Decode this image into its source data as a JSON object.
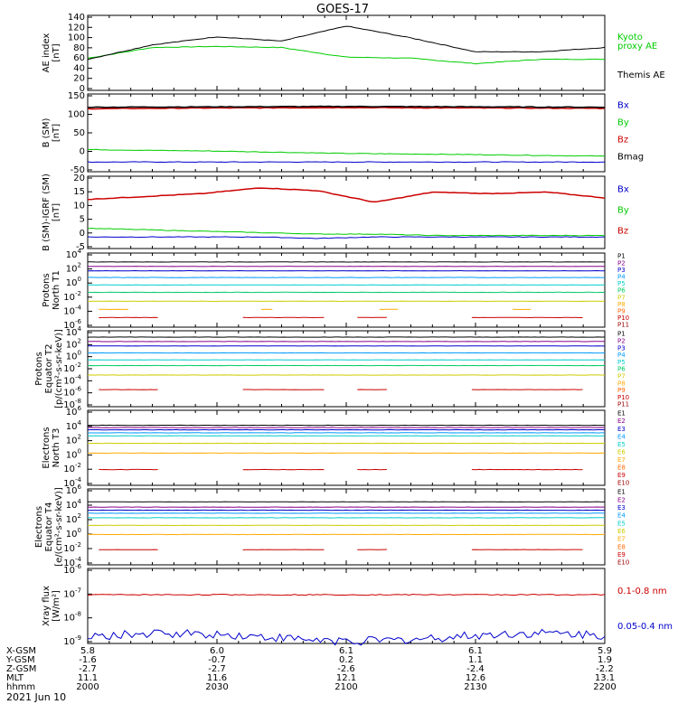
{
  "title": "GOES-17",
  "date_label": "2021 Jun 10",
  "panels": [
    {
      "id": "ae",
      "ylabel": [
        "AE index",
        "[nT]"
      ],
      "ticks": [
        "140",
        "120",
        "100",
        "80",
        "60",
        "40",
        "20",
        "0"
      ],
      "legend": [
        {
          "text": "Kyoto",
          "color": "#00cc00"
        },
        {
          "text": "proxy AE",
          "color": "#00cc00"
        },
        {
          "text": "Themis AE",
          "color": "#000000"
        }
      ]
    },
    {
      "id": "bsm",
      "ylabel": [
        "B (SM)",
        "[nT]"
      ],
      "ticks": [
        "150",
        "100",
        "50",
        "0",
        "-50"
      ],
      "legend": [
        {
          "text": "Bx",
          "color": "#0000cc"
        },
        {
          "text": "By",
          "color": "#00cc00"
        },
        {
          "text": "Bz",
          "color": "#cc0000"
        },
        {
          "text": "Bmag",
          "color": "#000000"
        }
      ]
    },
    {
      "id": "bigrf",
      "ylabel": [
        "B (SM)-IGRF (SM)",
        "[nT]"
      ],
      "ticks": [
        "20",
        "15",
        "10",
        "5",
        "0",
        "-5"
      ],
      "legend": [
        {
          "text": "Bx",
          "color": "#0000cc"
        },
        {
          "text": "By",
          "color": "#00cc00"
        },
        {
          "text": "Bz",
          "color": "#cc0000"
        }
      ]
    },
    {
      "id": "pt1",
      "ylabel": [
        "Protons",
        "North T1"
      ],
      "ticks": [
        "10^4",
        "10^2",
        "10^0",
        "10^-2",
        "10^-4",
        "10^-6"
      ],
      "legend": [
        {
          "text": "P1",
          "color": "#000000"
        },
        {
          "text": "P2",
          "color": "#880088"
        },
        {
          "text": "P3",
          "color": "#0000cc"
        },
        {
          "text": "P4",
          "color": "#0099ff"
        },
        {
          "text": "P5",
          "color": "#00cccc"
        },
        {
          "text": "P6",
          "color": "#00cc66"
        },
        {
          "text": "P7",
          "color": "#cccc00"
        },
        {
          "text": "P8",
          "color": "#ffaa00"
        },
        {
          "text": "P9",
          "color": "#ff6600"
        },
        {
          "text": "P10",
          "color": "#cc0000"
        },
        {
          "text": "P11",
          "color": "#990000"
        }
      ]
    },
    {
      "id": "pt2",
      "ylabel": [
        "Protons",
        "Equator T2",
        "[p/(cm²-s-sr-keV)]"
      ],
      "ticks": [
        "10^4",
        "10^2",
        "10^0",
        "10^-2",
        "10^-4",
        "10^-6",
        "10^-8"
      ],
      "legend": [
        {
          "text": "P1",
          "color": "#000000"
        },
        {
          "text": "P2",
          "color": "#880088"
        },
        {
          "text": "P3",
          "color": "#0000cc"
        },
        {
          "text": "P4",
          "color": "#0099ff"
        },
        {
          "text": "P5",
          "color": "#00cccc"
        },
        {
          "text": "P6",
          "color": "#00cc66"
        },
        {
          "text": "P7",
          "color": "#cccc00"
        },
        {
          "text": "P8",
          "color": "#ffaa00"
        },
        {
          "text": "P9",
          "color": "#ff6600"
        },
        {
          "text": "P10",
          "color": "#cc0000"
        },
        {
          "text": "P11",
          "color": "#990000"
        }
      ]
    },
    {
      "id": "et3",
      "ylabel": [
        "Electrons",
        "North T3"
      ],
      "ticks": [
        "10^6",
        "10^4",
        "10^2",
        "10^0",
        "10^-2",
        "10^-4"
      ],
      "legend": [
        {
          "text": "E1",
          "color": "#000000"
        },
        {
          "text": "E2",
          "color": "#880088"
        },
        {
          "text": "E3",
          "color": "#0000cc"
        },
        {
          "text": "E4",
          "color": "#0099ff"
        },
        {
          "text": "E5",
          "color": "#00cccc"
        },
        {
          "text": "E6",
          "color": "#cccc00"
        },
        {
          "text": "E7",
          "color": "#ffaa00"
        },
        {
          "text": "E8",
          "color": "#ff6600"
        },
        {
          "text": "E9",
          "color": "#cc0000"
        },
        {
          "text": "E10",
          "color": "#990000"
        }
      ]
    },
    {
      "id": "et4",
      "ylabel": [
        "Electrons",
        "Equator T4",
        "[e/(cm²-s-sr-keV)]"
      ],
      "ticks": [
        "10^6",
        "10^4",
        "10^2",
        "10^0",
        "10^-2",
        "10^-4"
      ],
      "legend": [
        {
          "text": "E1",
          "color": "#000000"
        },
        {
          "text": "E2",
          "color": "#880088"
        },
        {
          "text": "E3",
          "color": "#0000cc"
        },
        {
          "text": "E4",
          "color": "#0099ff"
        },
        {
          "text": "E5",
          "color": "#00cccc"
        },
        {
          "text": "E6",
          "color": "#cccc00"
        },
        {
          "text": "E7",
          "color": "#ffaa00"
        },
        {
          "text": "E8",
          "color": "#ff6600"
        },
        {
          "text": "E9",
          "color": "#cc0000"
        },
        {
          "text": "E10",
          "color": "#990000"
        }
      ]
    },
    {
      "id": "xray",
      "ylabel": [
        "Xray flux",
        "[W/m²]"
      ],
      "ticks": [
        "10^-6",
        "10^-7",
        "10^-8",
        "10^-9"
      ],
      "legend": [
        {
          "text": "0.1-0.8 nm",
          "color": "#cc0000"
        },
        {
          "text": "0.05-0.4 nm",
          "color": "#0000cc"
        }
      ]
    }
  ],
  "ephemeris": {
    "labels": [
      "X-GSM",
      "Y-GSM",
      "Z-GSM",
      "MLT",
      "hhmm"
    ],
    "columns": [
      [
        "5.8",
        "-1.6",
        "-2.7",
        "11.1",
        "2000"
      ],
      [
        "6.0",
        "-0.7",
        "-2.7",
        "11.6",
        "2030"
      ],
      [
        "6.1",
        "0.2",
        "-2.6",
        "12.1",
        "2100"
      ],
      [
        "6.1",
        "1.1",
        "-2.4",
        "12.6",
        "2130"
      ],
      [
        "5.9",
        "1.9",
        "-2.2",
        "13.1",
        "2200"
      ]
    ]
  },
  "chart_data": [
    {
      "type": "line",
      "x": [
        "2000",
        "2015",
        "2030",
        "2045",
        "2100",
        "2115",
        "2130",
        "2145",
        "2200"
      ],
      "ylim": [
        0,
        140
      ],
      "series": [
        {
          "name": "Kyoto proxy AE",
          "color": "#00cc00",
          "values": [
            60,
            80,
            82,
            80,
            62,
            60,
            50,
            58,
            58
          ]
        },
        {
          "name": "Themis AE",
          "color": "#000000",
          "values": [
            58,
            85,
            100,
            92,
            120,
            98,
            72,
            72,
            80
          ]
        }
      ]
    },
    {
      "type": "line",
      "x": [
        "2000",
        "2030",
        "2100",
        "2130",
        "2200"
      ],
      "ylim": [
        -50,
        150
      ],
      "series": [
        {
          "name": "Bx",
          "color": "#0000cc",
          "values": [
            -25,
            -25,
            -25,
            -25,
            -25
          ]
        },
        {
          "name": "By",
          "color": "#00cc00",
          "values": [
            7,
            3,
            -3,
            -6,
            -10
          ]
        },
        {
          "name": "Bz",
          "color": "#cc0000",
          "values": [
            112,
            114,
            115,
            114,
            113
          ]
        },
        {
          "name": "Bmag",
          "color": "#000000",
          "values": [
            116,
            117,
            118,
            117,
            116
          ]
        }
      ]
    },
    {
      "type": "line",
      "x": [
        "2000",
        "2015",
        "2030",
        "2045",
        "2055",
        "2100",
        "2115",
        "2130",
        "2145",
        "2200"
      ],
      "ylim": [
        -5,
        20
      ],
      "series": [
        {
          "name": "Bx",
          "color": "#0000cc",
          "values": [
            -1,
            -1,
            -1,
            -1,
            -1.5,
            -1,
            -1,
            -1,
            -1,
            -1
          ]
        },
        {
          "name": "By",
          "color": "#00cc00",
          "values": [
            2,
            1.5,
            1,
            0.5,
            0,
            0,
            -0.5,
            -0.5,
            -0.5,
            -0.5
          ]
        },
        {
          "name": "Bz",
          "color": "#cc0000",
          "values": [
            12,
            13,
            14,
            16,
            15,
            11,
            14.5,
            14,
            14.5,
            12.5
          ]
        }
      ]
    },
    {
      "type": "line",
      "ylabel": "Protons North T1 (log10)",
      "ylim": [
        -6,
        4
      ],
      "series": [
        {
          "name": "P1",
          "color": "#000000",
          "log10": 2.8
        },
        {
          "name": "P2",
          "color": "#880088",
          "log10": 2.2
        },
        {
          "name": "P3",
          "color": "#0000cc",
          "log10": 1.6
        },
        {
          "name": "P4",
          "color": "#0099ff",
          "log10": 0.7
        },
        {
          "name": "P5",
          "color": "#00cccc",
          "log10": -0.3
        },
        {
          "name": "P6",
          "color": "#00cc66",
          "log10": -1.3
        },
        {
          "name": "P7",
          "color": "#cccc00",
          "log10": -2.5
        },
        {
          "name": "P8",
          "color": "#ffaa00",
          "log10": -3.6
        },
        {
          "name": "P10",
          "color": "#cc0000",
          "log10": -4.7
        }
      ]
    },
    {
      "type": "line",
      "ylabel": "Protons Equator T2 (log10)",
      "ylim": [
        -8,
        4
      ],
      "series": [
        {
          "name": "P1",
          "color": "#000000",
          "log10": 3.0
        },
        {
          "name": "P2",
          "color": "#880088",
          "log10": 2.3
        },
        {
          "name": "P3",
          "color": "#0000cc",
          "log10": 1.6
        },
        {
          "name": "P4",
          "color": "#0099ff",
          "log10": 0.5
        },
        {
          "name": "P5",
          "color": "#00cccc",
          "log10": -0.6
        },
        {
          "name": "P6",
          "color": "#00cc66",
          "log10": -1.5
        },
        {
          "name": "P7",
          "color": "#cccc00",
          "log10": -3.0
        },
        {
          "name": "P10",
          "color": "#cc0000",
          "log10": -5.3
        }
      ]
    },
    {
      "type": "line",
      "ylabel": "Electrons North T3 (log10)",
      "ylim": [
        -4,
        6
      ],
      "series": [
        {
          "name": "E1",
          "color": "#000000",
          "log10": 4.0
        },
        {
          "name": "E2",
          "color": "#880088",
          "log10": 3.7
        },
        {
          "name": "E3",
          "color": "#0000cc",
          "log10": 3.4
        },
        {
          "name": "E4",
          "color": "#0099ff",
          "log10": 3.0
        },
        {
          "name": "E5",
          "color": "#00cccc",
          "log10": 2.6
        },
        {
          "name": "E6",
          "color": "#cccc00",
          "log10": 1.6
        },
        {
          "name": "E7",
          "color": "#ffaa00",
          "log10": 0.3
        },
        {
          "name": "E9",
          "color": "#cc0000",
          "log10": -1.9
        }
      ]
    },
    {
      "type": "line",
      "ylabel": "Electrons Equator T4 (log10)",
      "ylim": [
        -4,
        6
      ],
      "series": [
        {
          "name": "E1",
          "color": "#000000",
          "log10": 4.3
        },
        {
          "name": "E2",
          "color": "#880088",
          "log10": 3.6
        },
        {
          "name": "E3",
          "color": "#0000cc",
          "log10": 3.2
        },
        {
          "name": "E4",
          "color": "#0099ff",
          "log10": 2.8
        },
        {
          "name": "E5",
          "color": "#00cccc",
          "log10": 2.2
        },
        {
          "name": "E6",
          "color": "#cccc00",
          "log10": 1.2
        },
        {
          "name": "E7",
          "color": "#ffaa00",
          "log10": 0.0
        },
        {
          "name": "E9",
          "color": "#cc0000",
          "log10": -2.0
        }
      ]
    },
    {
      "type": "line",
      "ylabel": "Xray flux (log10 W/m2)",
      "ylim": [
        -9,
        -6
      ],
      "series": [
        {
          "name": "0.1-0.8 nm",
          "color": "#cc0000",
          "log10": -7.05
        },
        {
          "name": "0.05-0.4 nm",
          "color": "#0000cc",
          "log10": -8.75
        }
      ]
    }
  ]
}
